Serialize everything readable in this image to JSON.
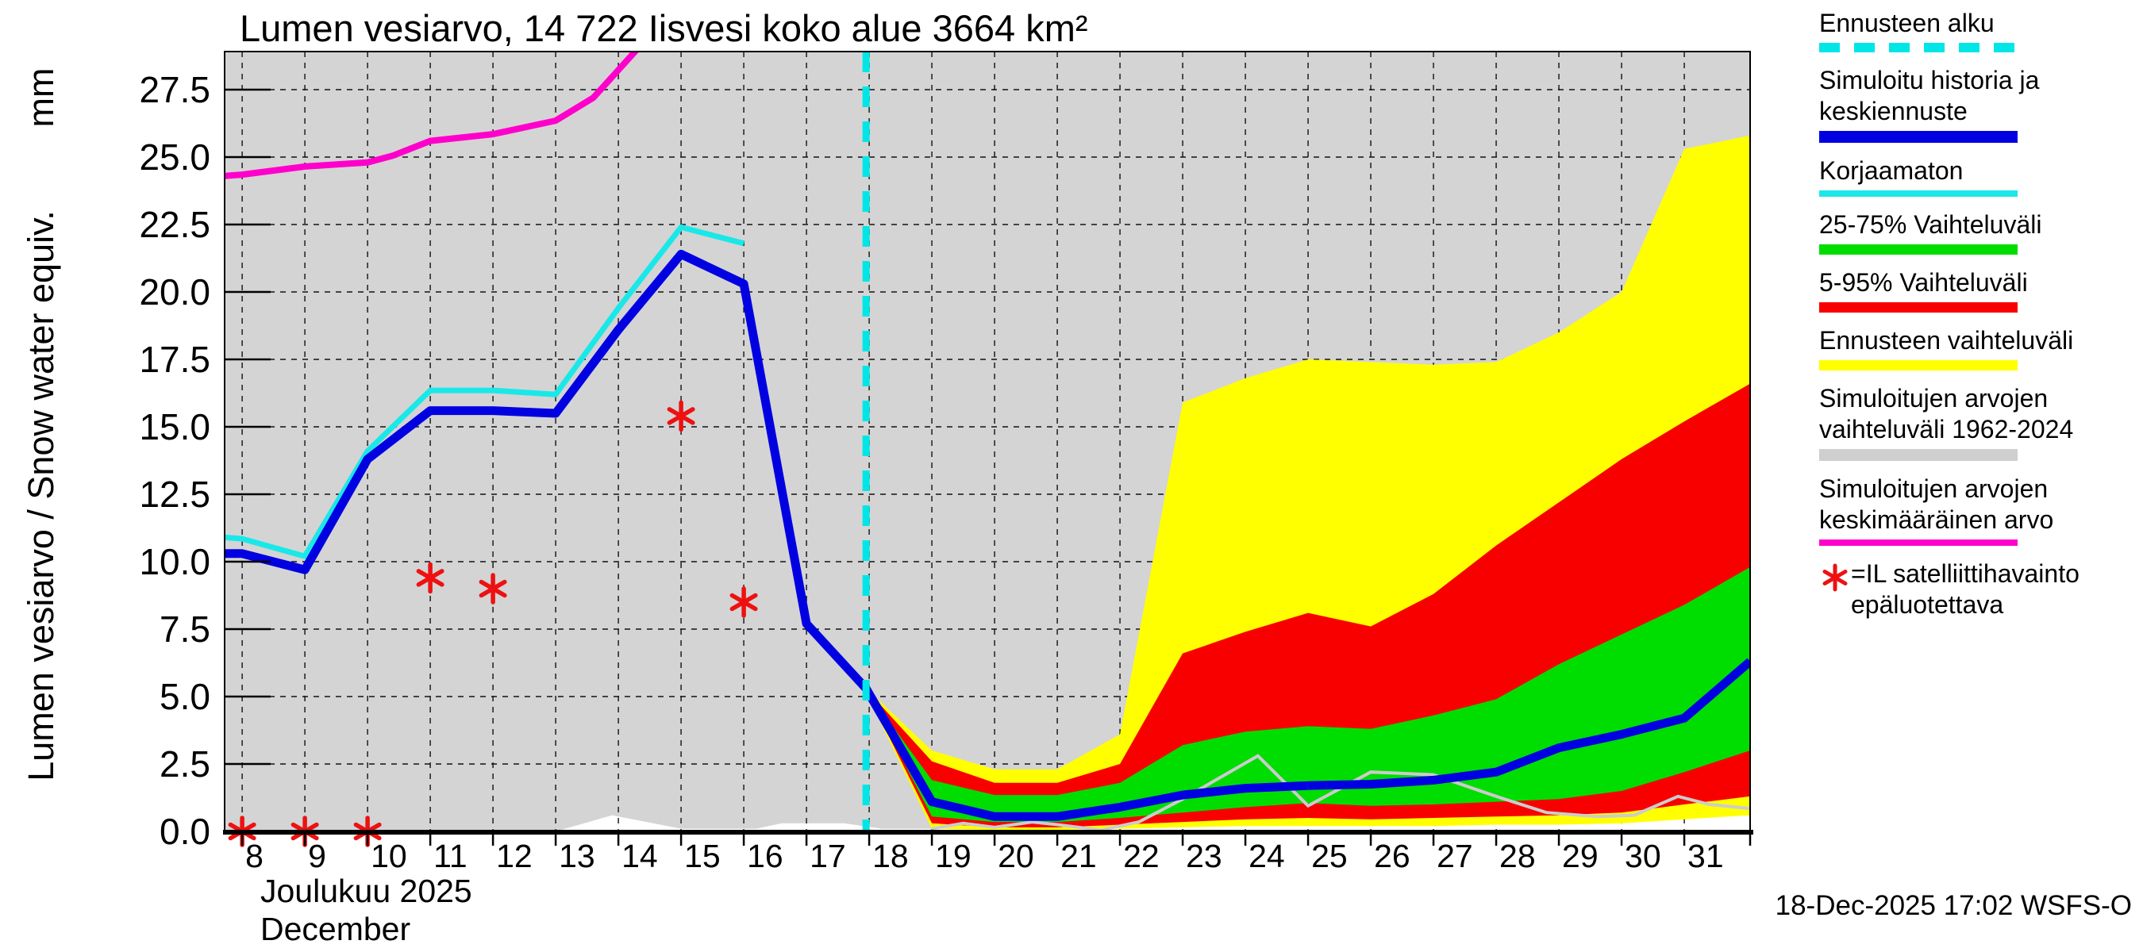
{
  "title": "Lumen vesiarvo, 14 722 Iisvesi koko alue 3664 km²",
  "y_axis": {
    "label": "Lumen vesiarvo / Snow water equiv.",
    "unit": "mm",
    "tick_values": [
      0.0,
      2.5,
      5.0,
      7.5,
      10.0,
      12.5,
      15.0,
      17.5,
      20.0,
      22.5,
      25.0,
      27.5
    ]
  },
  "x_axis": {
    "tick_days": [
      8,
      9,
      10,
      11,
      12,
      13,
      14,
      15,
      16,
      17,
      18,
      19,
      20,
      21,
      22,
      23,
      24,
      25,
      26,
      27,
      28,
      29,
      30,
      31
    ],
    "month_fi": "Joulukuu 2025",
    "month_en": "December"
  },
  "footer": {
    "timestamp": "18-Dec-2025 17:02 WSFS-O"
  },
  "colors": {
    "forecast_start": "#00e6e6",
    "mean_forecast": "#0000e1",
    "uncorrected": "#1ae8e8",
    "band_25_75": "#00dd00",
    "band_5_95": "#f80000",
    "band_forecast": "#ffff00",
    "band_history": "#d4d4d4",
    "history_min_line": "#cccccc",
    "history_mean": "#ff00cc",
    "satellite_marker": "#ee1111",
    "grid": "#111111"
  },
  "legend": [
    {
      "id": "forecast-start",
      "lines": [
        "Ennusteen alku"
      ],
      "swatch": {
        "kind": "dashes",
        "color": "#00e6e6",
        "height": 12
      }
    },
    {
      "id": "simulated-history",
      "lines": [
        "Simuloitu historia ja",
        "keskiennuste"
      ],
      "swatch": {
        "kind": "line",
        "color": "#0000e1",
        "height": 15
      }
    },
    {
      "id": "uncorrected",
      "lines": [
        "Korjaamaton"
      ],
      "swatch": {
        "kind": "line",
        "color": "#1ae8e8",
        "height": 8
      }
    },
    {
      "id": "range-25-75",
      "lines": [
        "25-75% Vaihteluväli"
      ],
      "swatch": {
        "kind": "line",
        "color": "#00dd00",
        "height": 13
      }
    },
    {
      "id": "range-5-95",
      "lines": [
        "5-95% Vaihteluväli"
      ],
      "swatch": {
        "kind": "line",
        "color": "#f80000",
        "height": 13
      }
    },
    {
      "id": "forecast-range",
      "lines": [
        "Ennusteen vaihteluväli"
      ],
      "swatch": {
        "kind": "line",
        "color": "#ffff00",
        "height": 13
      }
    },
    {
      "id": "simulated-range",
      "lines": [
        "Simuloitujen arvojen",
        "vaihteluväli 1962-2024"
      ],
      "swatch": {
        "kind": "line",
        "color": "#cfcfcf",
        "height": 15
      }
    },
    {
      "id": "simulated-mean",
      "lines": [
        "Simuloitujen arvojen",
        "keskimääräinen arvo"
      ],
      "swatch": {
        "kind": "line",
        "color": "#ff00cc",
        "height": 8
      }
    },
    {
      "id": "satellite-note",
      "lines": [
        "=IL satelliittihavainto",
        "epäluotettava"
      ],
      "swatch": {
        "kind": "asterisk",
        "color": "#ee1111"
      }
    }
  ],
  "chart_data": {
    "type": "line",
    "title": "Lumen vesiarvo, 14 722 Iisvesi koko alue 3664 km²",
    "ylabel": "Lumen vesiarvo / Snow water equiv. (mm)",
    "ylim": [
      0,
      27.5
    ],
    "xlim_days": [
      7.72,
      32.05
    ],
    "grid": true,
    "forecast_start_day": 17.95,
    "series": [
      {
        "name": "Simuloitu historia ja keskiennuste",
        "color": "#0000e1",
        "width": 11,
        "days": [
          7.72,
          8,
          9,
          10,
          11,
          12,
          13,
          14,
          15,
          16,
          17,
          17.95,
          19,
          20,
          21,
          22,
          23,
          24,
          25,
          26,
          27,
          28,
          29,
          30,
          31,
          32.05
        ],
        "values": [
          10.3,
          10.3,
          9.7,
          13.8,
          15.6,
          15.6,
          15.5,
          18.6,
          21.4,
          20.3,
          7.7,
          5.3,
          1.1,
          0.55,
          0.55,
          0.9,
          1.35,
          1.6,
          1.7,
          1.75,
          1.9,
          2.2,
          3.1,
          3.6,
          4.2,
          6.3
        ]
      },
      {
        "name": "Korjaamaton",
        "color": "#1ae8e8",
        "width": 7,
        "days": [
          7.72,
          8,
          9,
          10,
          11,
          12,
          13,
          14,
          15,
          16
        ],
        "values": [
          10.9,
          10.85,
          10.2,
          14.1,
          16.35,
          16.35,
          16.2,
          19.4,
          22.4,
          21.8
        ]
      },
      {
        "name": "Simuloitujen arvojen keskimääräinen arvo",
        "color": "#ff00cc",
        "width": 8,
        "days": [
          7.72,
          8,
          9,
          10,
          10.4,
          11,
          12,
          13,
          13.6,
          14.3
        ],
        "values": [
          24.3,
          24.35,
          24.65,
          24.8,
          25.05,
          25.6,
          25.85,
          26.35,
          27.2,
          29.0
        ]
      }
    ],
    "bands": {
      "days": [
        17.95,
        18,
        19,
        20,
        21,
        22,
        23,
        24,
        25,
        26,
        27,
        28,
        29,
        30,
        31,
        32.05
      ],
      "forecast_range": {
        "name": "Ennusteen vaihteluväli",
        "color": "#ffff00",
        "top": [
          5.3,
          5.2,
          3.0,
          2.3,
          2.3,
          3.6,
          15.9,
          16.8,
          17.5,
          17.4,
          17.3,
          17.4,
          18.5,
          20.0,
          25.3,
          25.8
        ],
        "bottom": [
          5.3,
          4.9,
          0.1,
          0.05,
          0.05,
          0.1,
          0.15,
          0.2,
          0.2,
          0.2,
          0.2,
          0.25,
          0.25,
          0.3,
          0.45,
          0.6
        ]
      },
      "range_5_95": {
        "name": "5-95% Vaihteluväli",
        "color": "#f80000",
        "top": [
          5.3,
          5.15,
          2.6,
          1.8,
          1.8,
          2.5,
          6.6,
          7.4,
          8.1,
          7.6,
          8.8,
          10.6,
          12.2,
          13.8,
          15.2,
          16.6
        ],
        "bottom": [
          5.3,
          5.0,
          0.3,
          0.15,
          0.15,
          0.25,
          0.35,
          0.45,
          0.5,
          0.45,
          0.5,
          0.55,
          0.6,
          0.7,
          1.0,
          1.3
        ]
      },
      "range_25_75": {
        "name": "25-75% Vaihteluväli",
        "color": "#00dd00",
        "top": [
          5.3,
          5.1,
          1.9,
          1.35,
          1.35,
          1.8,
          3.2,
          3.7,
          3.9,
          3.8,
          4.3,
          4.9,
          6.2,
          7.3,
          8.4,
          9.8
        ],
        "bottom": [
          5.3,
          5.05,
          0.55,
          0.35,
          0.35,
          0.5,
          0.7,
          0.9,
          1.05,
          0.95,
          1.0,
          1.1,
          1.2,
          1.5,
          2.2,
          3.0
        ]
      }
    },
    "history_band": {
      "name": "Simuloitujen arvojen vaihteluväli 1962-2024",
      "color": "#d4d4d4",
      "top_value": 29.5,
      "min_days": [
        7.72,
        13,
        13.9,
        15,
        16.2,
        16.6,
        17.6,
        18.2,
        19,
        19.5,
        20,
        20.6,
        21,
        21.7,
        22.3,
        23,
        24.2,
        25,
        26,
        27,
        28,
        28.8,
        29.6,
        30.2,
        30.9,
        31.4,
        32.05
      ],
      "min_values": [
        0,
        0,
        0.6,
        0.1,
        0.1,
        0.3,
        0.3,
        0.1,
        0.1,
        0.3,
        0.15,
        0.35,
        0.25,
        0.05,
        0.35,
        1.2,
        2.8,
        0.95,
        2.2,
        2.1,
        1.3,
        0.7,
        0.55,
        0.6,
        1.3,
        1.0,
        0.85
      ],
      "min_line_color": "#cccccc",
      "min_line_visible_from_day": 19
    },
    "observations": {
      "name": "IL satelliittihavainto epäluotettava",
      "marker": "6-point-asterisk",
      "color": "#ee1111",
      "points_day_mm": [
        [
          8,
          0
        ],
        [
          9,
          0
        ],
        [
          10,
          0
        ],
        [
          11,
          9.4
        ],
        [
          12,
          9.0
        ],
        [
          15,
          15.4
        ],
        [
          16,
          8.5
        ]
      ]
    }
  }
}
